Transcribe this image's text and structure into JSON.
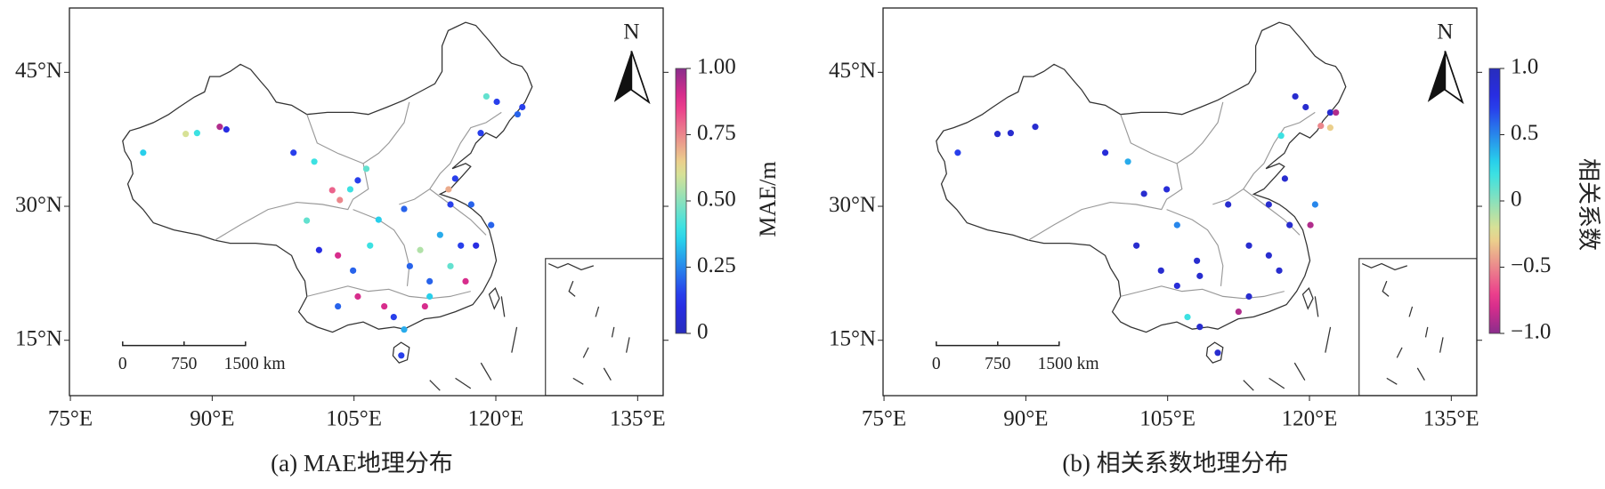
{
  "panels": [
    {
      "title": "(a) MAE地理分布",
      "north": "N",
      "colorbar_label": "MAE/m",
      "xlim": [
        74.9,
        137.7
      ],
      "ylim": [
        8.8,
        52.2
      ],
      "xticks": [
        {
          "value": 75,
          "label": "75°E"
        },
        {
          "value": 90,
          "label": "90°E"
        },
        {
          "value": 105,
          "label": "105°E"
        },
        {
          "value": 120,
          "label": "120°E"
        },
        {
          "value": 135,
          "label": "135°E"
        }
      ],
      "yticks": [
        {
          "value": 15,
          "label": "15°N"
        },
        {
          "value": 30,
          "label": "30°N"
        },
        {
          "value": 45,
          "label": "45°N"
        }
      ],
      "colormap": "jet",
      "colormap_reversed": false,
      "clim": [
        0,
        1
      ],
      "cticks": [
        {
          "value": 1,
          "label": "1.00"
        },
        {
          "value": 0.75,
          "label": "0.75"
        },
        {
          "value": 0.5,
          "label": "0.50"
        },
        {
          "value": 0.25,
          "label": "0.25"
        },
        0
      ],
      "scale_bar": [
        "0",
        "750",
        "1500 km"
      ],
      "stations": {
        "lon": [
          82.7,
          87.2,
          88.4,
          90.8,
          91.5,
          98.6,
          100.8,
          106.3,
          102.7,
          103.5,
          104.6,
          105.4,
          100.0,
          101.3,
          103.3,
          104.9,
          106.7,
          108.2,
          109.2,
          110.3,
          110.0,
          110.9,
          112.0,
          113.0,
          114.1,
          115.2,
          116.8,
          116.3,
          117.9,
          115.2,
          115.0,
          115.7,
          117.4,
          118.4,
          119.0,
          120.1,
          122.3,
          122.8,
          119.5,
          112.5,
          105.4,
          113.0,
          103.3,
          110.3,
          107.6
        ],
        "lat": [
          36.0,
          38.1,
          38.2,
          38.9,
          38.6,
          36.0,
          35.0,
          34.2,
          31.8,
          30.7,
          31.9,
          32.9,
          28.4,
          25.1,
          24.5,
          22.8,
          25.6,
          18.8,
          17.6,
          16.2,
          13.3,
          23.3,
          25.1,
          21.6,
          26.8,
          23.3,
          21.6,
          25.6,
          25.6,
          30.2,
          31.9,
          33.1,
          30.2,
          38.2,
          42.3,
          41.7,
          40.3,
          41.1,
          27.9,
          18.8,
          19.9,
          19.9,
          18.8,
          29.7,
          28.5
        ],
        "values": [
          0.35,
          0.6,
          0.4,
          0.95,
          0.1,
          0.15,
          0.4,
          0.45,
          0.8,
          0.75,
          0.4,
          0.15,
          0.45,
          0.1,
          0.9,
          0.2,
          0.4,
          0.9,
          0.15,
          0.3,
          0.15,
          0.2,
          0.55,
          0.2,
          0.3,
          0.45,
          0.9,
          0.15,
          0.1,
          0.15,
          0.7,
          0.15,
          0.2,
          0.15,
          0.45,
          0.15,
          0.2,
          0.15,
          0.2,
          0.9,
          0.9,
          0.35,
          0.2,
          0.2,
          0.35
        ]
      }
    },
    {
      "title": "(b) 相关系数地理分布",
      "north": "N",
      "colorbar_label": "相关系数",
      "xlim": [
        74.9,
        137.7
      ],
      "ylim": [
        8.8,
        52.2
      ],
      "xticks": [
        {
          "value": 75,
          "label": "75°E"
        },
        {
          "value": 90,
          "label": "90°E"
        },
        {
          "value": 105,
          "label": "105°E"
        },
        {
          "value": 120,
          "label": "120°E"
        },
        {
          "value": 135,
          "label": "135°E"
        }
      ],
      "yticks": [
        {
          "value": 15,
          "label": "15°N"
        },
        {
          "value": 30,
          "label": "30°N"
        },
        {
          "value": 45,
          "label": "45°N"
        }
      ],
      "colormap": "jet",
      "colormap_reversed": true,
      "clim": [
        -1,
        1
      ],
      "cticks": [
        {
          "value": 1,
          "label": "1.0"
        },
        0.5,
        0,
        {
          "value": -0.5,
          "label": "−0.5"
        },
        {
          "value": -1,
          "label": "−1.0"
        }
      ],
      "scale_bar": [
        "0",
        "750",
        "1500 km"
      ],
      "stations": {
        "lon": [
          82.8,
          87.0,
          88.4,
          91.0,
          98.4,
          100.8,
          102.5,
          104.9,
          106.0,
          101.7,
          108.4,
          112.5,
          113.6,
          110.3,
          107.1,
          115.7,
          117.9,
          120.1,
          117.4,
          115.7,
          120.6,
          118.5,
          119.6,
          122.2,
          122.2,
          122.8,
          117.0,
          121.2,
          111.4,
          108.1,
          106.0,
          113.6,
          104.3,
          116.8,
          108.4
        ],
        "lat": [
          36.0,
          38.1,
          38.2,
          38.9,
          36.0,
          35.0,
          31.4,
          31.9,
          27.9,
          25.6,
          22.2,
          18.2,
          19.9,
          13.6,
          17.6,
          24.5,
          27.9,
          27.9,
          33.1,
          30.2,
          30.2,
          42.3,
          41.1,
          40.5,
          38.8,
          40.5,
          37.9,
          39.0,
          30.2,
          23.9,
          21.1,
          25.6,
          22.8,
          22.8,
          16.5
        ],
        "values": [
          0.7,
          0.9,
          0.9,
          0.9,
          0.85,
          0.4,
          0.9,
          0.85,
          0.5,
          0.9,
          0.9,
          -0.9,
          0.9,
          0.9,
          0.2,
          0.9,
          0.9,
          -0.9,
          0.9,
          0.9,
          0.5,
          0.9,
          0.9,
          0.9,
          -0.3,
          -0.9,
          0.2,
          -0.5,
          0.9,
          0.9,
          0.85,
          0.9,
          0.9,
          0.9,
          0.9
        ]
      }
    }
  ]
}
